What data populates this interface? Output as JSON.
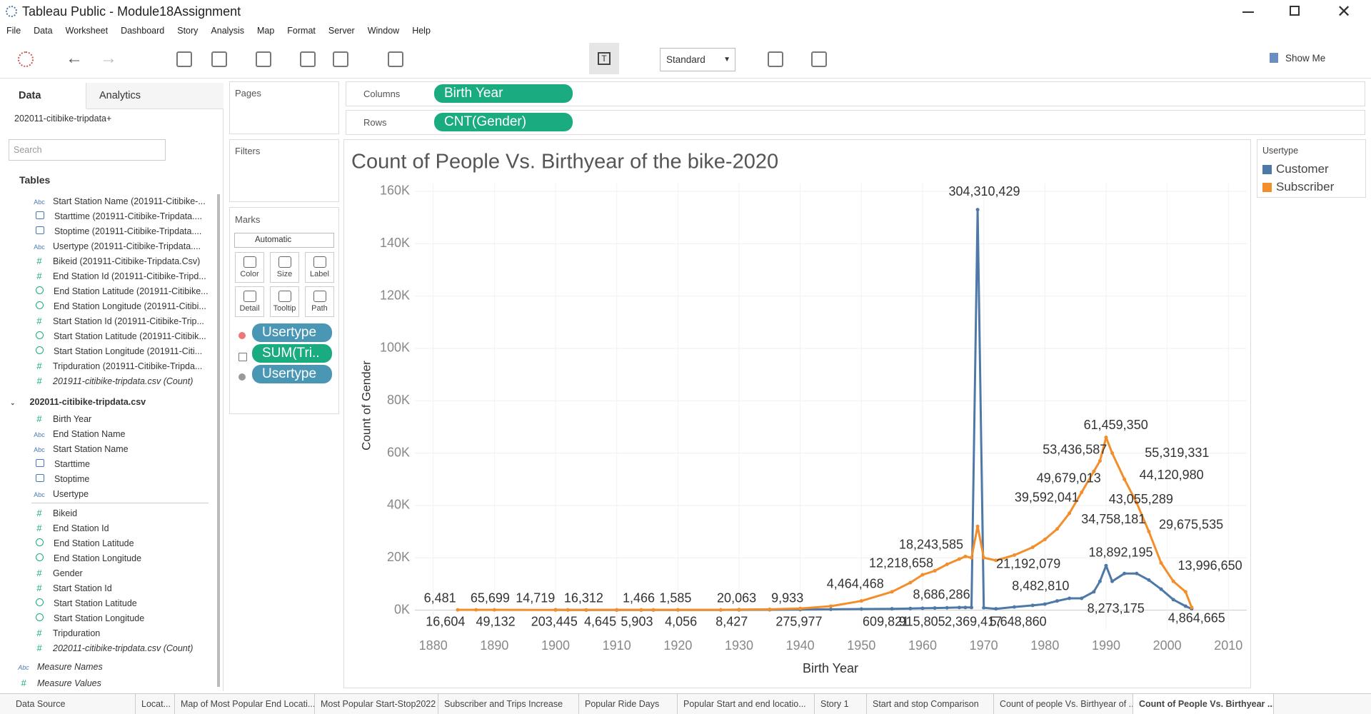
{
  "window": {
    "title": "Tableau Public - Module18Assignment"
  },
  "menu": [
    "File",
    "Data",
    "Worksheet",
    "Dashboard",
    "Story",
    "Analysis",
    "Map",
    "Format",
    "Server",
    "Window",
    "Help"
  ],
  "toolbar": {
    "mark_size": "Standard",
    "show_me": "Show Me"
  },
  "side_panel": {
    "tabs": [
      "Data",
      "Analytics"
    ],
    "datasource": "202011-citibike-tripdata+",
    "search_placeholder": "Search",
    "tables_heading": "Tables",
    "fields_top": [
      {
        "kind": "Abc",
        "name": "Start Station Name (201911-Citibike-..."
      },
      {
        "kind": "date",
        "name": "Starttime (201911-Citibike-Tripdata...."
      },
      {
        "kind": "date",
        "name": "Stoptime (201911-Citibike-Tripdata...."
      },
      {
        "kind": "Abc",
        "name": "Usertype (201911-Citibike-Tripdata...."
      },
      {
        "kind": "#",
        "name": "Bikeid (201911-Citibike-Tripdata.Csv)"
      },
      {
        "kind": "#",
        "name": "End Station Id (201911-Citibike-Tripd..."
      },
      {
        "kind": "geo",
        "name": "End Station Latitude (201911-Citibike..."
      },
      {
        "kind": "geo",
        "name": "End Station Longitude (201911-Citibi..."
      },
      {
        "kind": "#",
        "name": "Start Station Id (201911-Citibike-Trip..."
      },
      {
        "kind": "geo",
        "name": "Start Station Latitude (201911-Citibik..."
      },
      {
        "kind": "geo",
        "name": "Start Station Longitude (201911-Citi..."
      },
      {
        "kind": "#",
        "name": "Tripduration (201911-Citibike-Tripda..."
      },
      {
        "kind": "#",
        "name": "201911-citibike-tripdata.csv (Count)",
        "italic": true
      }
    ],
    "table": {
      "name": "202011-citibike-tripdata.csv",
      "fields": [
        {
          "kind": "#",
          "name": "Birth Year"
        },
        {
          "kind": "Abc",
          "name": "End Station Name"
        },
        {
          "kind": "Abc",
          "name": "Start Station Name"
        },
        {
          "kind": "date",
          "name": "Starttime"
        },
        {
          "kind": "date",
          "name": "Stoptime"
        },
        {
          "kind": "Abc",
          "name": "Usertype"
        },
        {
          "kind": "#",
          "name": "Bikeid"
        },
        {
          "kind": "#",
          "name": "End Station Id"
        },
        {
          "kind": "geo",
          "name": "End Station Latitude"
        },
        {
          "kind": "geo",
          "name": "End Station Longitude"
        },
        {
          "kind": "#",
          "name": "Gender"
        },
        {
          "kind": "#",
          "name": "Start Station Id"
        },
        {
          "kind": "geo",
          "name": "Start Station Latitude"
        },
        {
          "kind": "geo",
          "name": "Start Station Longitude"
        },
        {
          "kind": "#",
          "name": "Tripduration"
        },
        {
          "kind": "#",
          "name": "202011-citibike-tripdata.csv (Count)",
          "italic": true
        }
      ]
    },
    "measures": [
      {
        "kind": "Abc",
        "name": "Measure Names",
        "italic": true
      },
      {
        "kind": "#",
        "name": "Measure Values",
        "italic": true
      }
    ]
  },
  "shelves": {
    "pages": "Pages",
    "filters": "Filters",
    "columns_label": "Columns",
    "columns": [
      "Birth Year"
    ],
    "rows_label": "Rows",
    "rows": [
      "CNT(Gender)"
    ]
  },
  "marks": {
    "heading": "Marks",
    "type": "Automatic",
    "buttons": [
      "Color",
      "Size",
      "Label",
      "Detail",
      "Tooltip",
      "Path"
    ],
    "pills": [
      {
        "icon": "color",
        "text": "Usertype",
        "color": "#4a97b5"
      },
      {
        "icon": "label",
        "text": "SUM(Tri..",
        "color": "#1aab80"
      },
      {
        "icon": "detail",
        "text": "Usertype",
        "color": "#4a97b5"
      }
    ]
  },
  "sheet_tabs": [
    "Data Source",
    "Locat...",
    "Map of Most Popular End Locati...",
    "Most Popular Start-Stop2022",
    "Subscriber and Trips Increase",
    "Popular Ride Days",
    "Popular Start and end locatio...",
    "Story 1",
    "Start and stop Comparison",
    "Count of people Vs. Birthyear of ...",
    "Count of People Vs. Birthyear ..."
  ],
  "active_tab": 10,
  "chart_data": {
    "type": "line",
    "title": "Count of People Vs. Birthyear of the bike-2020",
    "x_label": "Birth Year",
    "y_label": "Count of Gender",
    "x": [
      1884,
      1887,
      1890,
      1900,
      1902,
      1905,
      1910,
      1914,
      1916,
      1920,
      1927,
      1930,
      1935,
      1940,
      1945,
      1950,
      1955,
      1958,
      1960,
      1962,
      1964,
      1966,
      1967,
      1968,
      1969,
      1970,
      1972,
      1975,
      1978,
      1980,
      1982,
      1984,
      1986,
      1988,
      1989,
      1990,
      1991,
      1993,
      1995,
      1997,
      1999,
      2001,
      2003,
      2004
    ],
    "series": [
      {
        "name": "Customer",
        "color": "#4e79a7",
        "values": [
          null,
          null,
          null,
          100,
          80,
          50,
          50,
          50,
          50,
          60,
          80,
          100,
          150,
          200,
          300,
          400,
          500,
          600,
          700,
          800,
          900,
          1000,
          1000,
          1000,
          153000,
          900,
          500,
          1200,
          1800,
          2300,
          3500,
          4500,
          4500,
          7000,
          11000,
          17000,
          11000,
          14000,
          14000,
          11500,
          8000,
          4000,
          1500,
          500
        ]
      },
      {
        "name": "Subscriber",
        "color": "#f28e2b",
        "values": [
          100,
          100,
          100,
          50,
          80,
          80,
          100,
          100,
          100,
          100,
          100,
          200,
          300,
          600,
          1500,
          3500,
          7000,
          10500,
          13500,
          15000,
          17500,
          19500,
          20500,
          20000,
          32000,
          20000,
          19000,
          21000,
          24000,
          27000,
          31000,
          37000,
          45000,
          53000,
          57000,
          66000,
          60000,
          50000,
          41000,
          30000,
          18000,
          11000,
          7000,
          1000
        ]
      }
    ],
    "xlim": [
      1877,
      2013
    ],
    "xticks": [
      1880,
      1890,
      1900,
      1910,
      1920,
      1930,
      1940,
      1950,
      1960,
      1970,
      1980,
      1990,
      2000,
      2010
    ],
    "ylim": [
      -7500,
      163000
    ],
    "yticks": [
      {
        "value": 0,
        "label": "0K"
      },
      {
        "value": 20000,
        "label": "20K"
      },
      {
        "value": 40000,
        "label": "40K"
      },
      {
        "value": 60000,
        "label": "60K"
      },
      {
        "value": 80000,
        "label": "80K"
      },
      {
        "value": 100000,
        "label": "100K"
      },
      {
        "value": 120000,
        "label": "120K"
      },
      {
        "value": 140000,
        "label": "140K"
      },
      {
        "value": 160000,
        "label": "160K"
      }
    ],
    "grid": true,
    "legend": {
      "title": "Usertype",
      "position": "right"
    },
    "annotations": [
      {
        "text": "304,310,429",
        "x": 1970.1,
        "y": 159600
      },
      {
        "text": "6,481",
        "x": 1881.1,
        "y": 4300
      },
      {
        "text": "16,604",
        "x": 1882,
        "y": -4700
      },
      {
        "text": "65,699",
        "x": 1889.3,
        "y": 4300
      },
      {
        "text": "49,132",
        "x": 1890.2,
        "y": -4700
      },
      {
        "text": "14,719",
        "x": 1896.7,
        "y": 4300
      },
      {
        "text": "203,445",
        "x": 1899.8,
        "y": -4700
      },
      {
        "text": "4,645",
        "x": 1907.3,
        "y": -4700
      },
      {
        "text": "16,312",
        "x": 1904.6,
        "y": 4300
      },
      {
        "text": "1,466",
        "x": 1913.6,
        "y": 4300
      },
      {
        "text": "1,585",
        "x": 1919.6,
        "y": 4300
      },
      {
        "text": "5,903",
        "x": 1913.3,
        "y": -4700
      },
      {
        "text": "4,056",
        "x": 1920.5,
        "y": -4700
      },
      {
        "text": "20,063",
        "x": 1929.6,
        "y": 4300
      },
      {
        "text": "8,427",
        "x": 1928.8,
        "y": -4700
      },
      {
        "text": "9,933",
        "x": 1937.9,
        "y": 4300
      },
      {
        "text": "275,977",
        "x": 1939.8,
        "y": -4700
      },
      {
        "text": "4,464,468",
        "x": 1949,
        "y": 9700
      },
      {
        "text": "609,821",
        "x": 1954,
        "y": -4700
      },
      {
        "text": "12,218,658",
        "x": 1956.5,
        "y": 17700
      },
      {
        "text": "915,805",
        "x": 1959.9,
        "y": -4700
      },
      {
        "text": "18,243,585",
        "x": 1961.4,
        "y": 24700
      },
      {
        "text": "8,686,286",
        "x": 1963.1,
        "y": 5700
      },
      {
        "text": "2,369,417",
        "x": 1968.3,
        "y": -4700
      },
      {
        "text": "5,648,860",
        "x": 1975.6,
        "y": -4700
      },
      {
        "text": "21,192,079",
        "x": 1977.3,
        "y": 17400
      },
      {
        "text": "8,482,810",
        "x": 1979.3,
        "y": 9000
      },
      {
        "text": "39,592,041",
        "x": 1980.3,
        "y": 42800
      },
      {
        "text": "49,679,013",
        "x": 1983.9,
        "y": 50100
      },
      {
        "text": "53,436,587",
        "x": 1984.9,
        "y": 61100
      },
      {
        "text": "61,459,350",
        "x": 1991.6,
        "y": 70500
      },
      {
        "text": "55,319,331",
        "x": 2001.6,
        "y": 59800
      },
      {
        "text": "44,120,980",
        "x": 2000.7,
        "y": 51400
      },
      {
        "text": "43,055,289",
        "x": 1995.7,
        "y": 42100
      },
      {
        "text": "34,758,181",
        "x": 1991.2,
        "y": 34400
      },
      {
        "text": "29,675,535",
        "x": 2003.9,
        "y": 32400
      },
      {
        "text": "18,892,195",
        "x": 1992.4,
        "y": 21700
      },
      {
        "text": "8,273,175",
        "x": 1991.6,
        "y": 300
      },
      {
        "text": "13,996,650",
        "x": 2007,
        "y": 16700
      },
      {
        "text": "4,864,665",
        "x": 2004.8,
        "y": -3300
      }
    ]
  }
}
